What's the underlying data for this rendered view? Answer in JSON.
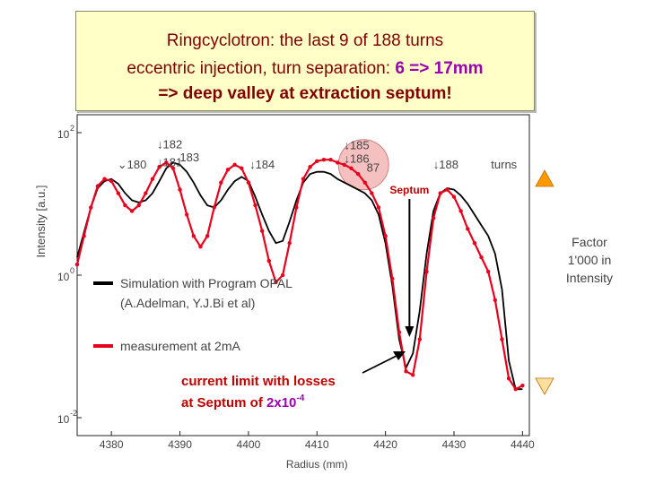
{
  "title": {
    "line1": "Ringcyclotron:  the last 9 of 188 turns",
    "line2_prefix": "eccentric injection, turn separation:  ",
    "line2_highlight": "6 => 17mm",
    "line3": "=>  deep valley at extraction septum!"
  },
  "side_note": "Factor 1'000  in Intensity",
  "colors": {
    "simulation": "#000000",
    "measurement": "#e8001c",
    "title_text": "#800000",
    "highlight": "#9b00b0",
    "callout_circle": "#f4c0c0",
    "arrow_gradient_top": "#ff9900",
    "arrow_gradient_bottom": "#ffe0a0"
  },
  "chart_data": {
    "type": "line",
    "ylabel": "Intensity [a.u.]",
    "xlabel": "Radius (mm)",
    "xlim": [
      4375,
      4441
    ],
    "ylim": [
      -2,
      2
    ],
    "x_ticks": [
      4380,
      4390,
      4400,
      4410,
      4420,
      4430,
      4440
    ],
    "x_tick_labels": [
      "4380",
      "4390",
      "4400",
      "4410",
      "4420",
      "4430",
      "4440"
    ],
    "y_ticks": [
      2,
      0,
      -2
    ],
    "y_tick_labels": [
      "10",
      "10",
      "10"
    ],
    "y_tick_exponents": [
      "2",
      "0",
      "-2"
    ],
    "turn_labels": [
      {
        "text": "↓182",
        "x": 4388.5,
        "y": 1.78
      },
      {
        "text": "↓181",
        "x": 4388.5,
        "y": 1.53
      },
      {
        "text": "183",
        "x": 4391.4,
        "y": 1.6
      },
      {
        "text": "⌄180",
        "x": 4383.0,
        "y": 1.5
      },
      {
        "text": "↓184",
        "x": 4402.0,
        "y": 1.5
      },
      {
        "text": "↓185",
        "x": 4415.8,
        "y": 1.77
      },
      {
        "text": "↓186",
        "x": 4415.8,
        "y": 1.58
      },
      {
        "text": "87",
        "x": 4418.2,
        "y": 1.45
      },
      {
        "text": "↓188",
        "x": 4428.8,
        "y": 1.5
      },
      {
        "text": "turns",
        "x": 4437.3,
        "y": 1.5
      }
    ],
    "septum_label": "Septum",
    "septum_x": 4423.5,
    "series": [
      {
        "name": "Simulation with Program OPAL (A.Adelman, Y.J.Bi et al)",
        "legend_line1": "Simulation with Program OPAL",
        "legend_line2": "(A.Adelman, Y.J.Bi et al)",
        "x": [
          4375,
          4376,
          4377,
          4378,
          4379,
          4380,
          4381,
          4382,
          4383,
          4384,
          4385,
          4386,
          4387,
          4388,
          4389,
          4390,
          4391,
          4392,
          4393,
          4394,
          4395,
          4396,
          4397,
          4398,
          4399,
          4400,
          4401,
          4402,
          4403,
          4404,
          4405,
          4406,
          4407,
          4408,
          4409,
          4410,
          4411,
          4412,
          4413,
          4414,
          4415,
          4416,
          4417,
          4418,
          4419,
          4420,
          4421,
          4422,
          4423,
          4424,
          4425,
          4426,
          4427,
          4428,
          4429,
          4430,
          4431,
          4432,
          4433,
          4434,
          4435,
          4436,
          4437,
          4438,
          4439,
          4440
        ],
        "y": [
          0.25,
          0.6,
          0.95,
          1.22,
          1.32,
          1.35,
          1.28,
          1.15,
          1.05,
          1.02,
          1.05,
          1.15,
          1.32,
          1.5,
          1.58,
          1.55,
          1.45,
          1.3,
          1.12,
          0.98,
          0.95,
          1.05,
          1.2,
          1.32,
          1.38,
          1.32,
          1.1,
          0.85,
          0.62,
          0.45,
          0.48,
          0.75,
          1.05,
          1.3,
          1.42,
          1.45,
          1.45,
          1.42,
          1.35,
          1.3,
          1.25,
          1.2,
          1.15,
          1.05,
          0.85,
          0.45,
          -0.15,
          -0.9,
          -1.3,
          -1.1,
          -0.5,
          0.3,
          0.9,
          1.15,
          1.22,
          1.2,
          1.12,
          1.0,
          0.85,
          0.7,
          0.55,
          0.3,
          -0.2,
          -1.2,
          -1.6,
          -1.6
        ]
      },
      {
        "name": "measurement at 2mA",
        "legend_line1": "measurement at 2mA",
        "x": [
          4375,
          4376,
          4377,
          4378,
          4379,
          4380,
          4381,
          4382,
          4383,
          4384,
          4385,
          4386,
          4387,
          4388,
          4389,
          4390,
          4391,
          4392,
          4393,
          4394,
          4395,
          4396,
          4397,
          4398,
          4399,
          4400,
          4401,
          4402,
          4403,
          4404,
          4405,
          4406,
          4407,
          4408,
          4409,
          4410,
          4411,
          4412,
          4413,
          4414,
          4415,
          4416,
          4417,
          4418,
          4419,
          4420,
          4421,
          4422,
          4423,
          4424,
          4425,
          4426,
          4427,
          4428,
          4429,
          4430,
          4431,
          4432,
          4433,
          4434,
          4435,
          4436,
          4437,
          4438,
          4439,
          4440
        ],
        "y": [
          0.15,
          0.55,
          0.95,
          1.25,
          1.35,
          1.32,
          1.15,
          0.98,
          0.9,
          0.98,
          1.15,
          1.35,
          1.52,
          1.58,
          1.5,
          1.2,
          0.85,
          0.55,
          0.4,
          0.55,
          0.95,
          1.3,
          1.48,
          1.55,
          1.5,
          1.3,
          0.98,
          0.62,
          0.2,
          -0.1,
          0.0,
          0.45,
          0.95,
          1.35,
          1.52,
          1.6,
          1.62,
          1.62,
          1.58,
          1.55,
          1.5,
          1.42,
          1.3,
          1.15,
          0.95,
          0.55,
          -0.05,
          -0.8,
          -1.35,
          -1.4,
          -0.9,
          0.05,
          0.8,
          1.15,
          1.2,
          1.1,
          0.9,
          0.65,
          0.45,
          0.25,
          0.05,
          -0.35,
          -0.9,
          -1.45,
          -1.6,
          -1.55
        ]
      }
    ],
    "annotations": {
      "loss_line1": "current limit with losses",
      "loss_line2_prefix": "at Septum of ",
      "loss_value": "2x10",
      "loss_exponent": "-4"
    }
  }
}
